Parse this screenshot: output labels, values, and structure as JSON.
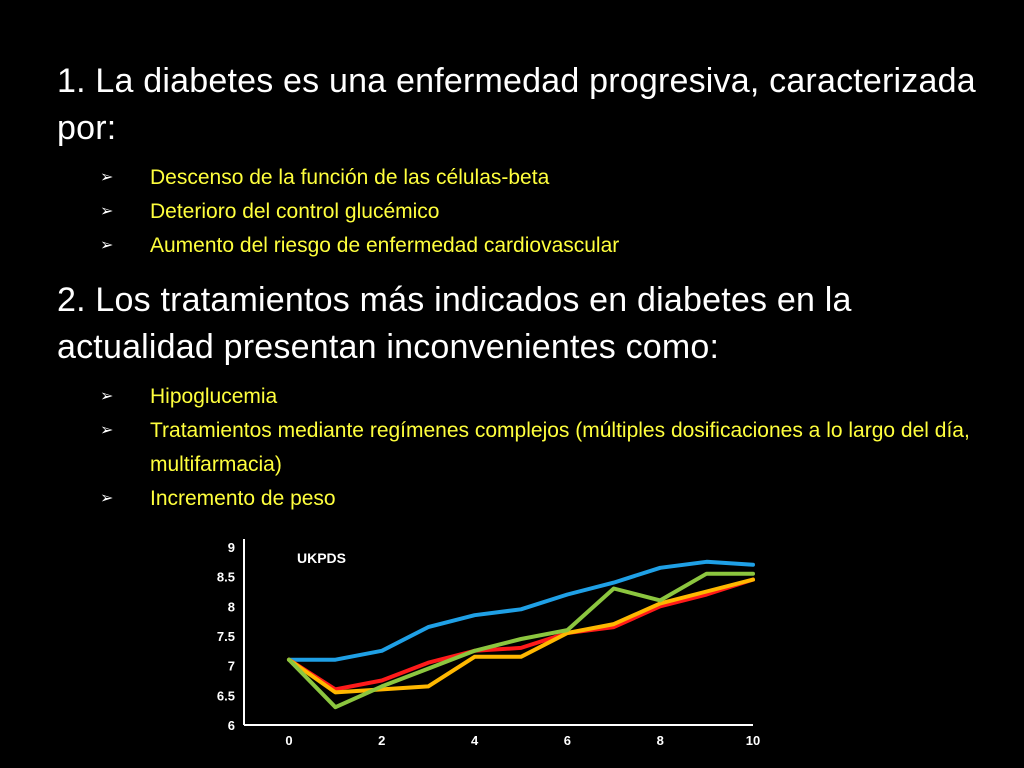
{
  "section1": {
    "heading": "1. La diabetes es una enfermedad progresiva, caracterizada por:",
    "bullets": [
      "Descenso de la función de las células-beta",
      "Deterioro del control glucémico",
      "Aumento del riesgo de enfermedad cardiovascular"
    ]
  },
  "section2": {
    "heading": "2. Los tratamientos más indicados en diabetes en la actualidad presentan inconvenientes como:",
    "bullets": [
      "Hipoglucemia",
      "Tratamientos mediante regímenes complejos (múltiples dosificaciones a lo largo del día, multifarmacia)",
      "Incremento de peso"
    ]
  },
  "bullet_icon": "arrow-bullet-icon",
  "colors": {
    "background": "#000000",
    "heading_text": "#ffffff",
    "bullet_text": "#ffff3d",
    "axis": "#ffffff"
  },
  "chart_data": {
    "type": "line",
    "title": "UKPDS",
    "xlabel": "",
    "ylabel": "",
    "x_ticks": [
      "0",
      "2",
      "4",
      "6",
      "8",
      "10"
    ],
    "y_ticks": [
      "9",
      "8.5",
      "8",
      "7.5",
      "7",
      "6.5",
      "6"
    ],
    "xlim": [
      0,
      10
    ],
    "ylim": [
      6,
      9
    ],
    "grid": false,
    "series": [
      {
        "color": "#1fa0e6",
        "x": [
          0,
          1,
          2,
          3,
          4,
          5,
          6,
          7,
          8,
          9,
          10
        ],
        "values": [
          7.1,
          7.1,
          7.25,
          7.65,
          7.85,
          7.95,
          8.2,
          8.4,
          8.65,
          8.75,
          8.7
        ]
      },
      {
        "color": "#ff1a1a",
        "x": [
          0,
          1,
          2,
          3,
          4,
          5,
          6,
          7,
          8,
          9,
          10
        ],
        "values": [
          7.1,
          6.6,
          6.75,
          7.05,
          7.25,
          7.3,
          7.55,
          7.65,
          8.0,
          8.2,
          8.45
        ]
      },
      {
        "color": "#ffb800",
        "x": [
          0,
          1,
          2,
          3,
          4,
          5,
          6,
          7,
          8,
          9,
          10
        ],
        "values": [
          7.1,
          6.55,
          6.6,
          6.65,
          7.15,
          7.15,
          7.55,
          7.7,
          8.05,
          8.25,
          8.45
        ]
      },
      {
        "color": "#8cc63f",
        "x": [
          0,
          1,
          2,
          3,
          4,
          5,
          6,
          7,
          8,
          9,
          10
        ],
        "values": [
          7.1,
          6.3,
          6.65,
          6.95,
          7.25,
          7.45,
          7.6,
          8.3,
          8.1,
          8.55,
          8.55
        ]
      }
    ]
  }
}
